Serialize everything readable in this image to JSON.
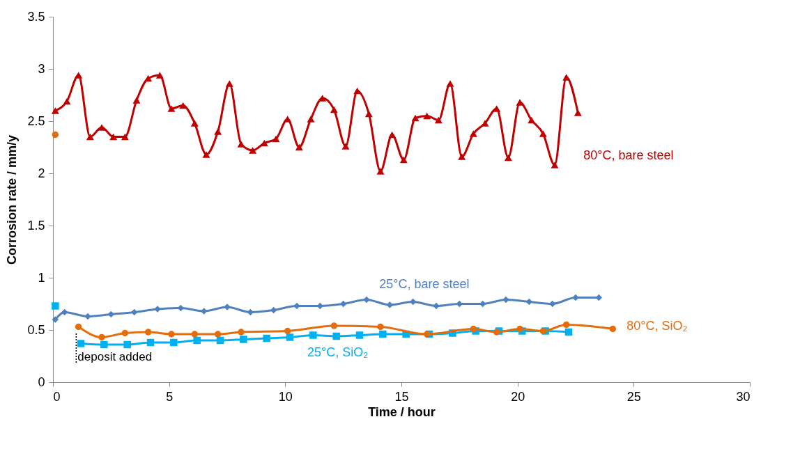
{
  "chart_data": {
    "type": "line",
    "xlabel": "Time / hour",
    "ylabel": "Corrosion rate / mm/y",
    "xlim": [
      0,
      30
    ],
    "xticks": [
      0,
      5,
      10,
      15,
      20,
      25,
      30
    ],
    "ylim": [
      0,
      3.5
    ],
    "yticks": [
      0,
      0.5,
      1,
      1.5,
      2,
      2.5,
      3,
      3.5
    ],
    "grid": false,
    "series": [
      {
        "name": "80°C, bare steel",
        "color": "#c00000",
        "marker": "triangle",
        "x": [
          0.1,
          0.6,
          1.1,
          1.6,
          2.1,
          2.6,
          3.1,
          3.6,
          4.1,
          4.6,
          5.1,
          5.6,
          6.1,
          6.6,
          7.1,
          7.6,
          8.1,
          8.6,
          9.1,
          9.6,
          10.1,
          10.6,
          11.1,
          11.6,
          12.1,
          12.6,
          13.1,
          13.6,
          14.1,
          14.6,
          15.1,
          15.6,
          16.1,
          16.6,
          17.1,
          17.6,
          18.1,
          18.6,
          19.1,
          19.6,
          20.1,
          20.6,
          21.1,
          21.6,
          22.1,
          22.6
        ],
        "values": [
          2.6,
          2.69,
          2.94,
          2.35,
          2.44,
          2.35,
          2.35,
          2.7,
          2.91,
          2.94,
          2.62,
          2.65,
          2.48,
          2.18,
          2.4,
          2.86,
          2.28,
          2.22,
          2.29,
          2.33,
          2.52,
          2.25,
          2.52,
          2.72,
          2.61,
          2.26,
          2.79,
          2.57,
          2.02,
          2.37,
          2.13,
          2.53,
          2.55,
          2.51,
          2.86,
          2.16,
          2.38,
          2.48,
          2.62,
          2.15,
          2.68,
          2.51,
          2.38,
          2.08,
          2.92,
          2.58
        ]
      },
      {
        "name": "25°C, bare steel",
        "color": "#4f81bd",
        "marker": "diamond",
        "x": [
          0.1,
          0.5,
          1.5,
          2.5,
          3.5,
          4.5,
          5.5,
          6.5,
          7.5,
          8.5,
          9.5,
          10.5,
          11.5,
          12.5,
          13.5,
          14.5,
          15.5,
          16.5,
          17.5,
          18.5,
          19.5,
          20.5,
          21.5,
          22.5,
          23.5
        ],
        "values": [
          0.6,
          0.67,
          0.63,
          0.65,
          0.67,
          0.7,
          0.71,
          0.68,
          0.72,
          0.67,
          0.69,
          0.73,
          0.73,
          0.75,
          0.79,
          0.74,
          0.77,
          0.73,
          0.75,
          0.75,
          0.79,
          0.77,
          0.75,
          0.81,
          0.81
        ]
      },
      {
        "name": "25°C, SiO₂",
        "color": "#00b0f0",
        "marker": "square",
        "x": [
          1.2,
          2.2,
          3.2,
          4.2,
          5.2,
          6.2,
          7.2,
          8.2,
          9.2,
          10.2,
          11.2,
          12.2,
          13.2,
          14.2,
          15.2,
          16.2,
          17.2,
          18.2,
          19.2,
          20.2,
          21.2,
          22.2
        ],
        "values": [
          0.37,
          0.36,
          0.36,
          0.38,
          0.38,
          0.4,
          0.4,
          0.41,
          0.42,
          0.43,
          0.45,
          0.44,
          0.45,
          0.46,
          0.46,
          0.46,
          0.47,
          0.49,
          0.49,
          0.49,
          0.49,
          0.48
        ]
      },
      {
        "name": "80°C, SiO₂",
        "color": "#e46c0a",
        "marker": "circle",
        "x": [
          1.1,
          2.1,
          3.1,
          4.1,
          5.1,
          6.1,
          7.1,
          8.1,
          10.1,
          12.1,
          14.1,
          16.1,
          18.1,
          19.1,
          20.1,
          21.1,
          22.1,
          24.1
        ],
        "values": [
          0.53,
          0.43,
          0.47,
          0.48,
          0.46,
          0.46,
          0.46,
          0.48,
          0.49,
          0.54,
          0.53,
          0.46,
          0.51,
          0.48,
          0.51,
          0.49,
          0.55,
          0.51
        ]
      },
      {
        "type": "scatter",
        "color": "#e46c0a",
        "marker": "circle",
        "x": [
          0.1
        ],
        "values": [
          2.37
        ]
      },
      {
        "type": "scatter",
        "color": "#00b0f0",
        "marker": "square",
        "x": [
          0.1
        ],
        "values": [
          0.73
        ]
      }
    ],
    "annotations": [
      {
        "text": "deposit added",
        "x": 1.0,
        "y": 0.52
      }
    ]
  }
}
